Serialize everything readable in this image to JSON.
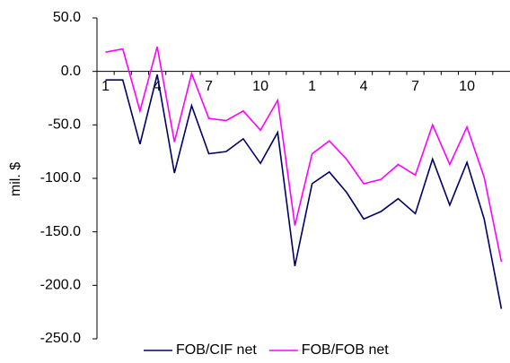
{
  "chart_data": {
    "type": "line",
    "y_label": "mil. $",
    "categories": [
      "1",
      null,
      null,
      "4",
      null,
      null,
      "7",
      null,
      null,
      "10",
      null,
      null,
      "1",
      null,
      null,
      "4",
      null,
      null,
      "7",
      null,
      null,
      "10",
      null,
      null
    ],
    "series": [
      {
        "name": "FOB/CIF net",
        "color": "#000066",
        "values": [
          -8,
          -8,
          -68,
          -3,
          -95,
          -32,
          -77,
          -75,
          -63,
          -86,
          -57,
          -182,
          -105,
          -94,
          -113,
          -138,
          -131,
          -119,
          -133,
          -82,
          -125,
          -85,
          -138,
          -222
        ]
      },
      {
        "name": "FOB/FOB net",
        "color": "#ff00ff",
        "values": [
          18,
          21,
          -37,
          23,
          -66,
          -2,
          -44,
          -46,
          -37,
          -55,
          -27,
          -144,
          -77,
          -65,
          -82,
          -105,
          -101,
          -87,
          -97,
          -50,
          -87,
          -52,
          -99,
          -178
        ]
      }
    ],
    "ylim": [
      -250,
      50
    ],
    "yticks": [
      {
        "value": -250,
        "label": "-250.0"
      },
      {
        "value": -200,
        "label": "-200.0"
      },
      {
        "value": -150,
        "label": "-150.0"
      },
      {
        "value": -100,
        "label": "-100.0"
      },
      {
        "value": -50,
        "label": "-50.0"
      },
      {
        "value": 0,
        "label": "0.0"
      },
      {
        "value": 50,
        "label": "50.0"
      }
    ],
    "grid": false,
    "legend": "bottom"
  }
}
